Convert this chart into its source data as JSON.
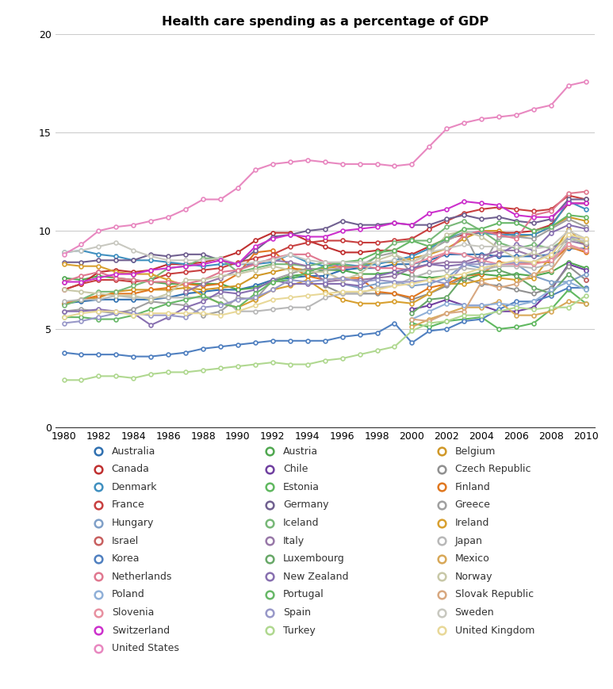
{
  "title": "Health care spending as a percentage of GDP",
  "years": [
    1980,
    1981,
    1982,
    1983,
    1984,
    1985,
    1986,
    1987,
    1988,
    1989,
    1990,
    1991,
    1992,
    1993,
    1994,
    1995,
    1996,
    1997,
    1998,
    1999,
    2000,
    2001,
    2002,
    2003,
    2004,
    2005,
    2006,
    2007,
    2008,
    2009,
    2010
  ],
  "countries": {
    "Australia": {
      "color": "#3070B0",
      "data": [
        6.3,
        6.4,
        6.5,
        6.5,
        6.5,
        6.5,
        6.6,
        6.8,
        6.9,
        7.0,
        7.0,
        7.2,
        7.5,
        7.6,
        7.7,
        7.7,
        8.0,
        8.1,
        8.1,
        8.3,
        8.3,
        8.5,
        8.8,
        8.8,
        8.8,
        8.7,
        8.7,
        8.7,
        8.8,
        9.1,
        9.1
      ]
    },
    "Austria": {
      "color": "#50A850",
      "data": [
        7.6,
        7.5,
        7.7,
        7.6,
        7.5,
        7.4,
        7.3,
        7.3,
        7.3,
        7.3,
        7.0,
        7.1,
        7.4,
        7.7,
        7.8,
        8.0,
        8.0,
        7.8,
        7.8,
        7.9,
        7.7,
        7.6,
        7.7,
        7.5,
        7.8,
        7.7,
        7.8,
        7.7,
        7.9,
        8.4,
        8.1
      ]
    },
    "Belgium": {
      "color": "#D09828",
      "data": [
        6.3,
        6.5,
        6.6,
        6.9,
        7.0,
        7.0,
        7.0,
        7.1,
        7.0,
        7.1,
        7.2,
        7.7,
        7.9,
        8.1,
        8.0,
        8.1,
        8.2,
        8.2,
        8.4,
        8.4,
        8.6,
        8.8,
        9.1,
        9.6,
        10.0,
        10.0,
        9.7,
        9.8,
        10.2,
        10.7,
        10.5
      ]
    },
    "Canada": {
      "color": "#C03030",
      "data": [
        7.0,
        7.3,
        7.9,
        8.0,
        7.9,
        8.0,
        8.3,
        8.3,
        8.4,
        8.6,
        8.9,
        9.5,
        9.9,
        9.9,
        9.5,
        9.2,
        8.9,
        8.9,
        9.0,
        9.0,
        8.8,
        9.2,
        9.6,
        9.8,
        9.9,
        9.9,
        9.9,
        10.0,
        10.3,
        11.4,
        11.4
      ]
    },
    "Chile": {
      "color": "#7040A0",
      "data": [
        null,
        null,
        null,
        null,
        null,
        null,
        null,
        null,
        null,
        null,
        null,
        null,
        null,
        null,
        null,
        null,
        null,
        null,
        null,
        null,
        6.0,
        6.2,
        6.5,
        6.2,
        6.2,
        5.9,
        5.9,
        6.1,
        7.0,
        8.3,
        8.0
      ]
    },
    "Czech Republic": {
      "color": "#909090",
      "data": [
        null,
        null,
        null,
        null,
        null,
        null,
        null,
        null,
        null,
        null,
        null,
        null,
        null,
        null,
        null,
        7.2,
        6.8,
        6.8,
        6.8,
        6.8,
        6.5,
        6.8,
        7.2,
        7.6,
        7.3,
        7.2,
        7.0,
        6.8,
        7.1,
        8.2,
        7.5
      ]
    },
    "Denmark": {
      "color": "#4090C0",
      "data": [
        8.9,
        9.0,
        8.8,
        8.7,
        8.5,
        8.5,
        8.4,
        8.3,
        8.2,
        8.3,
        8.3,
        8.3,
        8.4,
        8.8,
        8.4,
        8.2,
        8.3,
        8.2,
        8.3,
        8.5,
        8.7,
        9.1,
        9.6,
        9.9,
        9.9,
        9.8,
        9.8,
        9.8,
        10.2,
        11.5,
        11.1
      ]
    },
    "Estonia": {
      "color": "#60B860",
      "data": [
        null,
        null,
        null,
        null,
        null,
        null,
        null,
        null,
        null,
        null,
        null,
        null,
        null,
        null,
        null,
        null,
        null,
        null,
        null,
        null,
        5.3,
        5.1,
        5.4,
        5.5,
        5.6,
        5.0,
        5.1,
        5.3,
        6.0,
        7.0,
        6.3
      ]
    },
    "Finland": {
      "color": "#E07820",
      "data": [
        6.3,
        6.5,
        6.7,
        6.8,
        6.8,
        7.0,
        7.1,
        7.3,
        7.2,
        7.3,
        7.8,
        8.9,
        9.0,
        8.2,
        7.7,
        7.5,
        7.6,
        7.6,
        6.9,
        6.8,
        6.6,
        7.1,
        7.3,
        7.7,
        7.8,
        8.4,
        8.3,
        8.4,
        8.4,
        9.2,
        8.9
      ]
    },
    "France": {
      "color": "#C84040",
      "data": [
        7.0,
        7.3,
        7.5,
        7.5,
        7.4,
        7.5,
        7.8,
        7.9,
        8.0,
        8.1,
        8.4,
        8.6,
        8.8,
        9.2,
        9.4,
        9.5,
        9.5,
        9.4,
        9.4,
        9.5,
        9.6,
        10.1,
        10.5,
        10.9,
        11.1,
        11.2,
        11.1,
        11.0,
        11.1,
        11.8,
        11.6
      ]
    },
    "Germany": {
      "color": "#706090",
      "data": [
        8.4,
        8.4,
        8.5,
        8.5,
        8.5,
        8.8,
        8.7,
        8.8,
        8.8,
        8.5,
        8.3,
        9.0,
        9.7,
        9.8,
        10.0,
        10.1,
        10.5,
        10.3,
        10.3,
        10.4,
        10.3,
        10.3,
        10.6,
        10.8,
        10.6,
        10.7,
        10.5,
        10.4,
        10.6,
        11.6,
        11.6
      ]
    },
    "Greece": {
      "color": "#A0A0A0",
      "data": [
        5.9,
        6.0,
        5.9,
        5.8,
        6.0,
        6.4,
        6.3,
        6.2,
        5.7,
        5.9,
        6.6,
        6.5,
        7.5,
        7.8,
        8.1,
        8.0,
        8.1,
        8.2,
        8.7,
        8.9,
        7.8,
        9.0,
        9.5,
        9.9,
        8.1,
        9.7,
        9.7,
        9.6,
        10.1,
        10.6,
        10.2
      ]
    },
    "Hungary": {
      "color": "#80A0C8",
      "data": [
        null,
        null,
        null,
        null,
        null,
        null,
        null,
        null,
        null,
        null,
        null,
        null,
        null,
        null,
        null,
        7.3,
        7.3,
        7.1,
        7.3,
        7.4,
        7.2,
        7.3,
        7.6,
        8.3,
        8.1,
        8.3,
        8.3,
        7.7,
        7.4,
        7.4,
        7.8
      ]
    },
    "Iceland": {
      "color": "#78B878",
      "data": [
        6.2,
        6.5,
        6.9,
        6.9,
        7.2,
        7.5,
        8.1,
        8.2,
        8.6,
        8.6,
        7.9,
        8.1,
        8.3,
        8.3,
        8.2,
        8.4,
        8.3,
        8.1,
        8.7,
        9.4,
        9.5,
        9.5,
        10.2,
        10.5,
        10.0,
        9.4,
        9.1,
        9.3,
        9.1,
        9.7,
        9.3
      ]
    },
    "Ireland": {
      "color": "#D8A030",
      "data": [
        8.3,
        8.2,
        8.2,
        7.9,
        7.8,
        7.8,
        7.5,
        7.2,
        6.7,
        6.3,
        6.1,
        6.5,
        7.0,
        7.2,
        7.5,
        6.9,
        6.5,
        6.3,
        6.3,
        6.4,
        6.3,
        6.8,
        7.3,
        7.3,
        7.5,
        7.6,
        7.5,
        7.6,
        8.7,
        10.1,
        9.2
      ]
    },
    "Israel": {
      "color": "#C86060",
      "data": [
        null,
        null,
        null,
        null,
        null,
        null,
        null,
        null,
        null,
        null,
        null,
        null,
        null,
        null,
        null,
        null,
        null,
        null,
        null,
        null,
        null,
        null,
        null,
        null,
        null,
        null,
        null,
        null,
        null,
        null,
        7.5
      ]
    },
    "Italy": {
      "color": "#9878A8",
      "data": [
        null,
        null,
        null,
        null,
        null,
        null,
        null,
        6.9,
        7.3,
        7.6,
        8.0,
        8.4,
        8.5,
        8.4,
        8.2,
        7.4,
        7.5,
        7.5,
        7.6,
        7.7,
        8.1,
        8.3,
        8.4,
        8.4,
        8.7,
        9.0,
        9.0,
        8.7,
        9.1,
        9.5,
        9.3
      ]
    },
    "Japan": {
      "color": "#B8B8B8",
      "data": [
        6.4,
        6.5,
        6.5,
        6.7,
        6.6,
        6.6,
        6.6,
        6.6,
        6.6,
        6.7,
        5.9,
        5.9,
        6.0,
        6.1,
        6.1,
        6.6,
        6.8,
        6.8,
        7.1,
        7.2,
        7.6,
        7.9,
        8.0,
        8.1,
        8.0,
        8.2,
        8.2,
        8.1,
        8.3,
        9.5,
        9.5
      ]
    },
    "Korea": {
      "color": "#5080C0",
      "data": [
        3.8,
        3.7,
        3.7,
        3.7,
        3.6,
        3.6,
        3.7,
        3.8,
        4.0,
        4.1,
        4.2,
        4.3,
        4.4,
        4.4,
        4.4,
        4.4,
        4.6,
        4.7,
        4.8,
        5.3,
        4.3,
        4.9,
        5.0,
        5.4,
        5.5,
        6.0,
        6.4,
        6.4,
        6.7,
        7.1,
        7.1
      ]
    },
    "Luxembourg": {
      "color": "#68A868",
      "data": [
        null,
        null,
        null,
        null,
        null,
        null,
        null,
        null,
        null,
        null,
        null,
        null,
        null,
        null,
        null,
        null,
        null,
        null,
        null,
        null,
        5.8,
        6.5,
        6.6,
        7.7,
        7.9,
        8.0,
        7.7,
        7.1,
        6.8,
        7.8,
        7.0
      ]
    },
    "Mexico": {
      "color": "#D8A858",
      "data": [
        null,
        null,
        null,
        null,
        null,
        null,
        null,
        null,
        null,
        null,
        null,
        null,
        null,
        null,
        null,
        null,
        null,
        null,
        null,
        null,
        5.1,
        5.5,
        5.8,
        6.1,
        6.1,
        6.4,
        5.7,
        5.7,
        5.9,
        6.4,
        6.3
      ]
    },
    "Netherlands": {
      "color": "#E07890",
      "data": [
        7.4,
        7.7,
        7.9,
        7.6,
        7.5,
        7.4,
        7.4,
        7.3,
        7.5,
        7.9,
        8.0,
        8.3,
        8.6,
        8.8,
        8.8,
        8.4,
        8.1,
        8.2,
        8.1,
        8.1,
        8.0,
        8.3,
        8.9,
        9.8,
        10.0,
        9.8,
        9.6,
        10.8,
        11.0,
        11.9,
        12.0
      ]
    },
    "New Zealand": {
      "color": "#8870B0",
      "data": [
        5.9,
        5.9,
        6.0,
        5.9,
        5.8,
        5.2,
        5.6,
        6.1,
        6.4,
        6.9,
        6.8,
        7.0,
        7.5,
        7.3,
        7.3,
        7.3,
        7.3,
        7.2,
        7.7,
        7.9,
        8.1,
        8.3,
        8.2,
        8.3,
        8.5,
        8.8,
        9.3,
        9.0,
        9.9,
        10.3,
        10.1
      ]
    },
    "Norway": {
      "color": "#C8C8A8",
      "data": [
        7.0,
        6.9,
        6.8,
        6.7,
        6.7,
        6.5,
        6.8,
        7.5,
        7.5,
        7.7,
        7.8,
        8.0,
        8.2,
        8.0,
        7.9,
        7.9,
        7.5,
        7.8,
        8.5,
        8.8,
        8.4,
        8.8,
        9.8,
        10.0,
        9.7,
        9.1,
        8.6,
        8.9,
        8.5,
        9.7,
        9.4
      ]
    },
    "Poland": {
      "color": "#90B0D8",
      "data": [
        null,
        null,
        null,
        null,
        null,
        null,
        null,
        null,
        null,
        null,
        null,
        null,
        null,
        null,
        null,
        null,
        null,
        null,
        null,
        null,
        5.5,
        5.9,
        6.3,
        6.2,
        6.2,
        6.3,
        6.2,
        6.4,
        7.0,
        7.4,
        7.0
      ]
    },
    "Portugal": {
      "color": "#68B868",
      "data": [
        5.6,
        5.6,
        5.5,
        5.5,
        5.7,
        6.0,
        6.3,
        6.5,
        6.7,
        6.3,
        6.1,
        6.8,
        7.4,
        7.5,
        7.9,
        8.2,
        8.4,
        8.5,
        8.9,
        9.0,
        9.5,
        9.2,
        9.6,
        10.1,
        10.1,
        10.4,
        10.4,
        10.0,
        10.2,
        10.8,
        10.7
      ]
    },
    "Slovak Republic": {
      "color": "#D8A880",
      "data": [
        null,
        null,
        null,
        null,
        null,
        null,
        null,
        null,
        null,
        null,
        null,
        null,
        null,
        null,
        null,
        null,
        null,
        null,
        null,
        null,
        5.5,
        5.4,
        5.8,
        5.9,
        7.4,
        7.1,
        7.3,
        7.8,
        8.0,
        9.2,
        9.0
      ]
    },
    "Slovenia": {
      "color": "#E890A0",
      "data": [
        null,
        null,
        null,
        null,
        null,
        null,
        null,
        null,
        null,
        null,
        null,
        null,
        null,
        null,
        null,
        null,
        null,
        null,
        null,
        null,
        8.3,
        8.6,
        8.9,
        8.8,
        8.5,
        8.3,
        8.3,
        8.3,
        8.5,
        9.3,
        9.0
      ]
    },
    "Spain": {
      "color": "#9898C8",
      "data": [
        5.3,
        5.4,
        5.6,
        5.8,
        5.8,
        5.7,
        5.7,
        5.6,
        6.1,
        6.2,
        6.5,
        6.6,
        7.0,
        7.5,
        7.4,
        7.5,
        7.6,
        7.4,
        7.5,
        7.4,
        7.4,
        7.5,
        7.3,
        8.3,
        8.3,
        8.3,
        8.4,
        8.4,
        8.9,
        9.7,
        9.6
      ]
    },
    "Sweden": {
      "color": "#C8C8C0",
      "data": [
        8.9,
        9.0,
        9.2,
        9.4,
        9.0,
        8.7,
        8.5,
        8.5,
        8.5,
        8.6,
        8.3,
        8.4,
        8.5,
        8.8,
        8.5,
        8.4,
        8.4,
        8.4,
        8.4,
        8.5,
        8.4,
        8.9,
        9.1,
        9.3,
        9.2,
        9.2,
        9.2,
        9.1,
        9.2,
        10.0,
        9.6
      ]
    },
    "Switzerland": {
      "color": "#CC30CC",
      "data": [
        7.4,
        7.4,
        7.6,
        7.8,
        7.8,
        8.0,
        8.1,
        8.2,
        8.3,
        8.5,
        8.3,
        9.2,
        9.6,
        9.8,
        9.7,
        9.7,
        10.0,
        10.1,
        10.2,
        10.4,
        10.3,
        10.9,
        11.1,
        11.5,
        11.4,
        11.3,
        10.8,
        10.7,
        10.7,
        11.4,
        11.4
      ]
    },
    "Turkey": {
      "color": "#B0D890",
      "data": [
        2.4,
        2.4,
        2.6,
        2.6,
        2.5,
        2.7,
        2.8,
        2.8,
        2.9,
        3.0,
        3.1,
        3.2,
        3.3,
        3.2,
        3.2,
        3.4,
        3.5,
        3.7,
        3.9,
        4.1,
        4.9,
        5.3,
        5.4,
        5.7,
        5.7,
        5.9,
        6.1,
        6.0,
        6.1,
        6.1,
        6.7
      ]
    },
    "United Kingdom": {
      "color": "#E8D898",
      "data": [
        5.6,
        5.8,
        5.9,
        5.9,
        5.7,
        5.8,
        5.8,
        5.8,
        5.8,
        5.7,
        5.9,
        6.2,
        6.5,
        6.6,
        6.7,
        6.8,
        6.9,
        6.9,
        7.0,
        7.2,
        7.3,
        7.5,
        7.7,
        7.8,
        8.1,
        8.3,
        8.5,
        8.4,
        8.8,
        9.8,
        9.6
      ]
    },
    "United States": {
      "color": "#E888C0",
      "data": [
        8.8,
        9.3,
        10.0,
        10.2,
        10.3,
        10.5,
        10.7,
        11.1,
        11.6,
        11.6,
        12.2,
        13.1,
        13.4,
        13.5,
        13.6,
        13.5,
        13.4,
        13.4,
        13.4,
        13.3,
        13.4,
        14.3,
        15.2,
        15.5,
        15.7,
        15.8,
        15.9,
        16.2,
        16.4,
        17.4,
        17.6
      ]
    }
  },
  "xlim": [
    1979.5,
    2010.5
  ],
  "ylim": [
    0,
    20
  ],
  "yticks": [
    0,
    5,
    10,
    15,
    20
  ],
  "xticks": [
    1980,
    1982,
    1984,
    1986,
    1988,
    1990,
    1992,
    1994,
    1996,
    1998,
    2000,
    2002,
    2004,
    2006,
    2008,
    2010
  ],
  "figsize": [
    7.73,
    8.69
  ],
  "dpi": 100,
  "background_color": "#ffffff",
  "legend_rows": [
    [
      "Australia",
      "Austria",
      "Belgium"
    ],
    [
      "Canada",
      "Chile",
      "Czech Republic"
    ],
    [
      "Denmark",
      "Estonia",
      "Finland"
    ],
    [
      "France",
      "Germany",
      "Greece"
    ],
    [
      "Hungary",
      "Iceland",
      "Ireland"
    ],
    [
      "Israel",
      "Italy",
      "Japan"
    ],
    [
      "Korea",
      "Luxembourg",
      "Mexico"
    ],
    [
      "Netherlands",
      "New Zealand",
      "Norway"
    ],
    [
      "Poland",
      "Portugal",
      "Slovak Republic"
    ],
    [
      "Slovenia",
      "Spain",
      "Sweden"
    ],
    [
      "Switzerland",
      "Turkey",
      "United Kingdom"
    ],
    [
      "United States",
      null,
      null
    ]
  ]
}
